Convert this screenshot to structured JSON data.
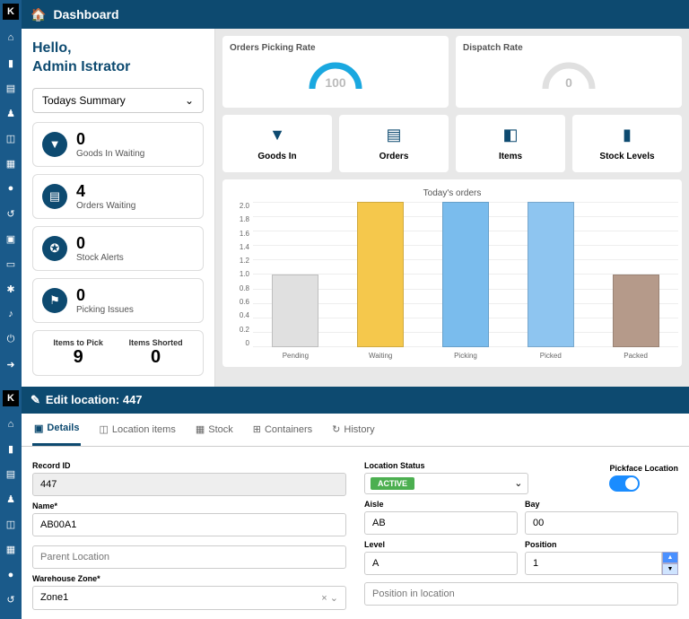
{
  "colors": {
    "primary": "#0d4a70",
    "sidebar": "#1a5a8a",
    "accent_blue": "#1a8cff",
    "status_active": "#4caf50"
  },
  "dashboard": {
    "title": "Dashboard",
    "greeting_line1": "Hello,",
    "greeting_line2": "Admin Istrator",
    "summary_select": "Todays Summary",
    "cards": [
      {
        "value": "0",
        "label": "Goods In Waiting"
      },
      {
        "value": "4",
        "label": "Orders Waiting"
      },
      {
        "value": "0",
        "label": "Stock Alerts"
      },
      {
        "value": "0",
        "label": "Picking Issues"
      }
    ],
    "items_to_pick": {
      "label": "Items to Pick",
      "value": "9"
    },
    "items_shorted": {
      "label": "Items Shorted",
      "value": "0"
    },
    "gauges": [
      {
        "title": "Orders Picking Rate",
        "value": "100",
        "color": "#1aa8e0",
        "track": "#e0e0e0"
      },
      {
        "title": "Dispatch Rate",
        "value": "0",
        "color": "#e0e0e0",
        "track": "#e0e0e0"
      }
    ],
    "tiles": [
      {
        "label": "Goods In"
      },
      {
        "label": "Orders"
      },
      {
        "label": "Items"
      },
      {
        "label": "Stock Levels"
      }
    ],
    "chart": {
      "type": "bar",
      "title": "Today's orders",
      "ylim": [
        0,
        2.0
      ],
      "ytick_step": 0.2,
      "yticks": [
        "2.0",
        "1.8",
        "1.6",
        "1.4",
        "1.2",
        "1.0",
        "0.8",
        "0.6",
        "0.4",
        "0.2",
        "0"
      ],
      "categories": [
        "Pending",
        "Waiting",
        "Picking",
        "Picked",
        "Packed"
      ],
      "values": [
        1.0,
        2.0,
        2.0,
        2.0,
        1.0
      ],
      "bar_colors": [
        "#e0e0e0",
        "#f5c84c",
        "#7abced",
        "#8ec5f0",
        "#b59a8a"
      ],
      "grid_color": "#eeeeee",
      "background_color": "#ffffff",
      "label_fontsize": 8
    }
  },
  "edit": {
    "title": "Edit location: 447",
    "tabs": [
      {
        "label": "Details",
        "active": true
      },
      {
        "label": "Location items"
      },
      {
        "label": "Stock"
      },
      {
        "label": "Containers"
      },
      {
        "label": "History"
      }
    ],
    "record_id": {
      "label": "Record ID",
      "value": "447"
    },
    "name": {
      "label": "Name*",
      "value": "AB00A1"
    },
    "parent_location": {
      "label": "",
      "placeholder": "Parent Location"
    },
    "warehouse_zone": {
      "label": "Warehouse Zone*",
      "value": "Zone1"
    },
    "location_status": {
      "label": "Location Status",
      "value": "ACTIVE"
    },
    "pickface": {
      "label": "Pickface Location",
      "on": true
    },
    "aisle": {
      "label": "Aisle",
      "value": "AB"
    },
    "bay": {
      "label": "Bay",
      "value": "00"
    },
    "level": {
      "label": "Level",
      "value": "A"
    },
    "position": {
      "label": "Position",
      "value": "1"
    },
    "position_in_location": {
      "placeholder": "Position in location"
    }
  }
}
